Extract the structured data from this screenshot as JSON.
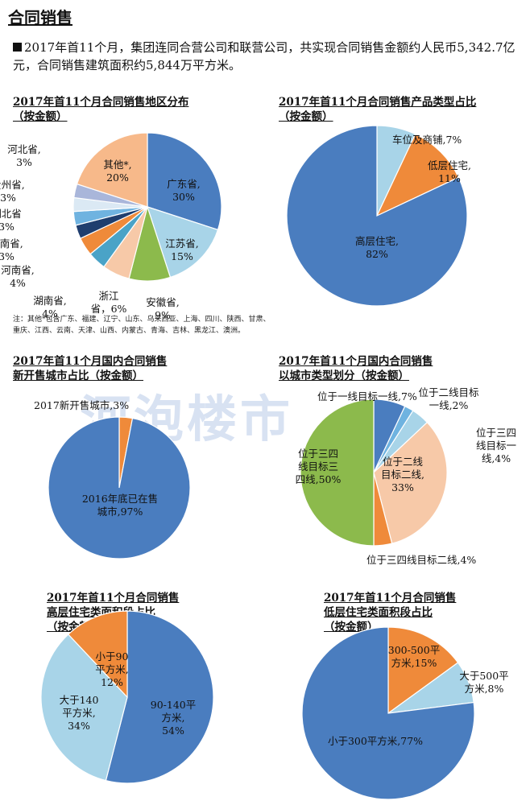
{
  "header": "合同销售",
  "intro": "2017年首11个月，集团连同合营公司和联营公司，共实现合同销售金额约人民币5,342.7亿元，合同销售建筑面积约5,844万平方米。",
  "watermark": "河泡楼市",
  "colors": {
    "blue": "#4a7dbf",
    "lightblue": "#a8d4e8",
    "orange": "#ef8a3a",
    "green": "#8cba4c",
    "peach": "#f7c9a8",
    "navy": "#1f3e6e",
    "teal": "#4aa3c7",
    "lavender": "#a9b6da",
    "skyblue": "#6fb3e0",
    "wheat": "#e8b68f"
  },
  "chart_data": [
    {
      "type": "pie",
      "title": [
        "2017年首11个月合同销售地区分布",
        "（按金额）"
      ],
      "slices": [
        {
          "label": "广东省",
          "value": 30,
          "color": "#4a7dbf",
          "text": [
            "广东省,",
            "30%"
          ]
        },
        {
          "label": "江苏省",
          "value": 15,
          "color": "#a8d4e8",
          "text": [
            "江苏省,",
            "15%"
          ]
        },
        {
          "label": "安徽省",
          "value": 9,
          "color": "#8cba4c",
          "text": [
            "安徽省,",
            "9%"
          ]
        },
        {
          "label": "浙江省",
          "value": 6,
          "color": "#f7c9a8",
          "text": [
            "浙江",
            "省，6%"
          ]
        },
        {
          "label": "湖南省",
          "value": 4,
          "color": "#4aa3c7",
          "text": [
            "湖南省,",
            "4%"
          ]
        },
        {
          "label": "河南省",
          "value": 4,
          "color": "#ef8a3a",
          "text": [
            "河南省,",
            "4%"
          ]
        },
        {
          "label": "海南省",
          "value": 3,
          "color": "#1f3e6e",
          "text": [
            "海南省,",
            "3%"
          ]
        },
        {
          "label": "湖北省",
          "value": 3,
          "color": "#6fb3e0",
          "text": [
            "湖北省",
            "3%"
          ]
        },
        {
          "label": "贵州省",
          "value": 3,
          "color": "#dbe9f4",
          "text": [
            "贵州省,",
            "3%"
          ]
        },
        {
          "label": "河北省",
          "value": 3,
          "color": "#a9b6da",
          "text": [
            "河北省,",
            "3%"
          ]
        },
        {
          "label": "其他*",
          "value": 20,
          "color": "#f7b98a",
          "text": [
            "其他*,",
            "20%"
          ]
        }
      ],
      "note": "注：其他*包含广东、福建、辽宁、山东、乌来西亚、上海、四川、陕西、甘肃、重庆、江西、云南、天津、山西、内蒙古、青海、吉林、黑龙江、澳洲。"
    },
    {
      "type": "pie",
      "title": [
        "2017年首11个月合同销售产品类型占比",
        "（按金额）"
      ],
      "slices": [
        {
          "label": "车位及商铺",
          "value": 7,
          "color": "#a8d4e8",
          "text": [
            "车位及商铺,7%"
          ]
        },
        {
          "label": "低层住宅",
          "value": 11,
          "color": "#ef8a3a",
          "text": [
            "低层住宅,",
            "11%"
          ]
        },
        {
          "label": "高层住宅",
          "value": 82,
          "color": "#4a7dbf",
          "text": [
            "高层住宅,",
            "82%"
          ]
        }
      ]
    },
    {
      "type": "pie",
      "title": [
        "2017年首11个月国内合同销售",
        "新开售城市占比（按金额）"
      ],
      "slices": [
        {
          "label": "2017新开售城市",
          "value": 3,
          "color": "#ef8a3a",
          "text": [
            "2017新开售城市,3%"
          ]
        },
        {
          "label": "2016年底已在售城市",
          "value": 97,
          "color": "#4a7dbf",
          "text": [
            "2016年底已在售",
            "城市,97%"
          ]
        }
      ]
    },
    {
      "type": "pie",
      "title": [
        "2017年首11个月国内合同销售",
        "以城市类型划分（按金额）"
      ],
      "slices": [
        {
          "label": "位于一线目标一线",
          "value": 7,
          "color": "#4a7dbf",
          "text": [
            "位于一线目标一线,7%"
          ]
        },
        {
          "label": "位于二线目标一线",
          "value": 2,
          "color": "#6fb3e0",
          "text": [
            "位于二线目标",
            "一线,2%"
          ]
        },
        {
          "label": "位于三四线目标一线",
          "value": 4,
          "color": "#a8d4e8",
          "text": [
            "位于三四",
            "线目标一",
            "线,4%"
          ]
        },
        {
          "label": "位于二线目标二线",
          "value": 33,
          "color": "#f7c9a8",
          "text": [
            "位于二线",
            "目标二线,",
            "33%"
          ]
        },
        {
          "label": "位于三四线目标二线",
          "value": 4,
          "color": "#ef8a3a",
          "text": [
            "位于三四线目标二线,4%"
          ]
        },
        {
          "label": "位于三四线目标三四线",
          "value": 50,
          "color": "#8cba4c",
          "text": [
            "位于三四",
            "线目标三",
            "四线,50%"
          ]
        }
      ]
    },
    {
      "type": "pie",
      "title": [
        "2017年首11个月合同销售",
        "高层住宅类面积段占比",
        "（按金额）"
      ],
      "slices": [
        {
          "label": "90-140平方米",
          "value": 54,
          "color": "#4a7dbf",
          "text": [
            "90-140平",
            "方米,",
            "54%"
          ]
        },
        {
          "label": "大于140平方米",
          "value": 34,
          "color": "#a8d4e8",
          "text": [
            "大于140",
            "平方米,",
            "34%"
          ]
        },
        {
          "label": "小于90平方米",
          "value": 12,
          "color": "#ef8a3a",
          "text": [
            "小于90",
            "平方米,",
            "12%"
          ]
        }
      ]
    },
    {
      "type": "pie",
      "title": [
        "2017年首11个月合同销售",
        "低层住宅类面积段占比",
        "（按金额）"
      ],
      "slices": [
        {
          "label": "300-500平方米",
          "value": 15,
          "color": "#ef8a3a",
          "text": [
            "300-500平",
            "方米,15%"
          ]
        },
        {
          "label": "大于500平方米",
          "value": 8,
          "color": "#a8d4e8",
          "text": [
            "大于500平",
            "方米,8%"
          ]
        },
        {
          "label": "小于300平方米",
          "value": 77,
          "color": "#4a7dbf",
          "text": [
            "小于300平方米,77%"
          ]
        }
      ]
    }
  ]
}
